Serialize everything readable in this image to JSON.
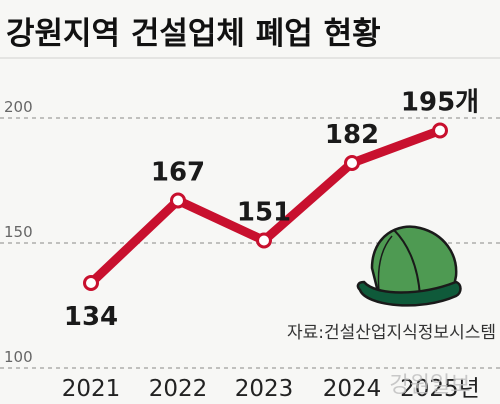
{
  "chart_data": {
    "type": "line",
    "title": "강원지역 건설업체 폐업 현황",
    "categories": [
      "2021",
      "2022",
      "2023",
      "2024",
      "2025년"
    ],
    "series": [
      {
        "values": [
          134,
          167,
          151,
          182,
          195
        ]
      }
    ],
    "data_labels": [
      "134",
      "167",
      "151",
      "182",
      "195개"
    ],
    "yticks": [
      100,
      150,
      200
    ],
    "ylim": [
      100,
      200
    ],
    "grid": "dashed horizontal",
    "source": "자료:건설산업지식정보시스템",
    "watermark": "강원일보",
    "colors": {
      "line": "#c8102e",
      "marker_fill": "#ffffff",
      "grid": "#888888",
      "hat_green": "#4e9a52",
      "hat_stripe": "#0f5a3a"
    }
  }
}
